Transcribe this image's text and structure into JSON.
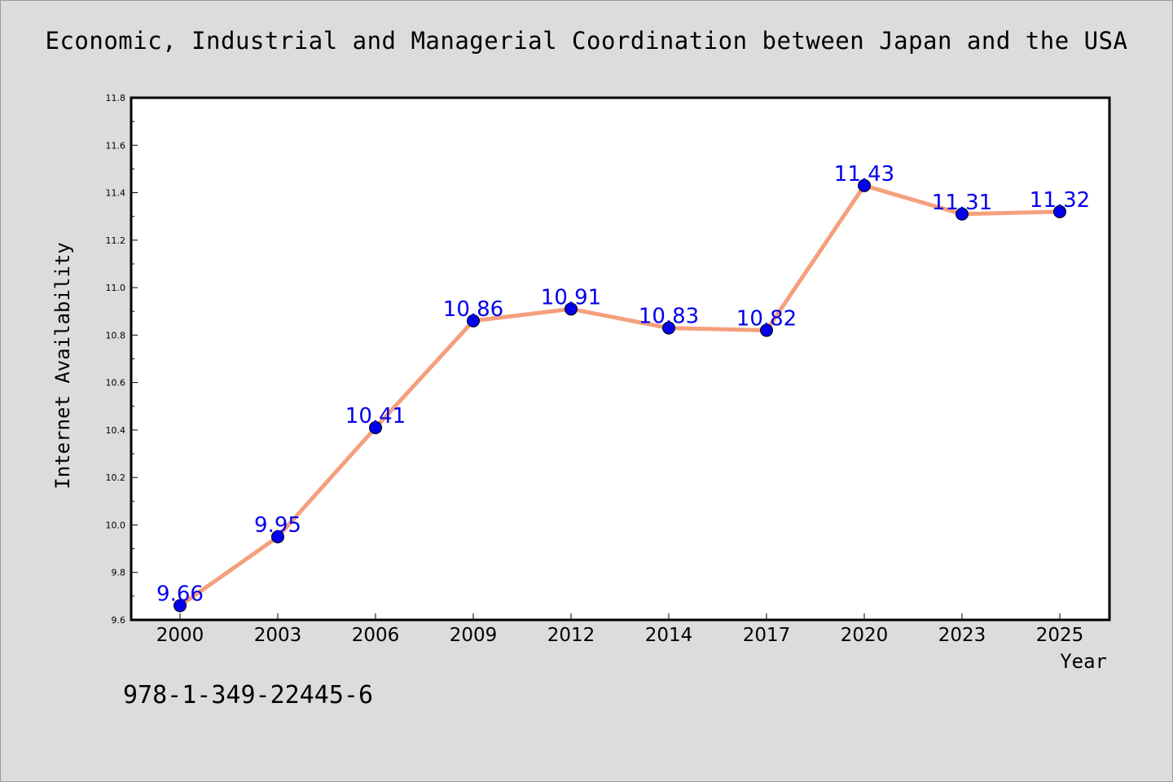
{
  "chart_data": {
    "type": "line",
    "title": "Economic, Industrial and Managerial Coordination between Japan and the USA",
    "xlabel": "Year",
    "ylabel": "Internet Availability",
    "categories": [
      "2000",
      "2003",
      "2006",
      "2009",
      "2012",
      "2014",
      "2017",
      "2020",
      "2023",
      "2025"
    ],
    "series": [
      {
        "values": [
          9.66,
          9.95,
          10.41,
          10.86,
          10.91,
          10.83,
          10.82,
          11.43,
          11.31,
          11.32
        ],
        "data_labels": [
          "9.66",
          "9.95",
          "10.41",
          "10.86",
          "10.91",
          "10.83",
          "10.82",
          "11.43",
          "11.31",
          "11.32"
        ],
        "line_color": "#f4a07c",
        "marker_color": "#0000ee"
      }
    ],
    "ylim": [
      9.6,
      11.8
    ],
    "yticks": [
      "9.6",
      "9.8",
      "10.0",
      "10.2",
      "10.4",
      "10.6",
      "10.8",
      "11.0",
      "11.2",
      "11.4",
      "11.6",
      "11.8"
    ],
    "grid": false,
    "legend": "none"
  },
  "footer": {
    "isbn": "978-1-349-22445-6"
  }
}
